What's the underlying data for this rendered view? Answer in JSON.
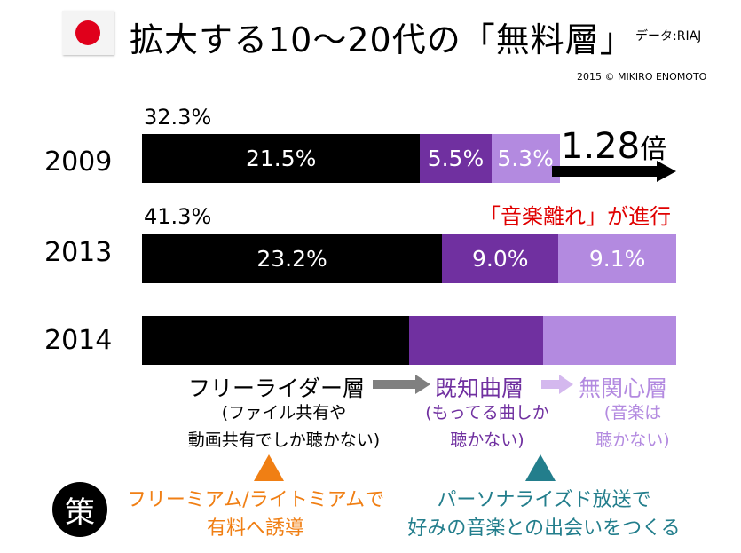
{
  "header": {
    "flag_icon": "japan-flag-icon",
    "title": "拡大する10～20代の「無料層」",
    "source": "データ:RIAJ",
    "copyright": "2015 © MIKIRO  ENOMOTO"
  },
  "chart_data": {
    "type": "stacked-bar-horizontal",
    "categories": [
      "2009",
      "2013",
      "2014"
    ],
    "series": [
      {
        "name": "フリーライダー層",
        "values": [
          21.5,
          23.2,
          null
        ],
        "labels": [
          "21.5%",
          "23.2%",
          ""
        ],
        "color": "#000000"
      },
      {
        "name": "既知曲層",
        "values": [
          5.5,
          9.0,
          null
        ],
        "labels": [
          "5.5%",
          "9.0%",
          ""
        ],
        "color": "#7030a0"
      },
      {
        "name": "無関心層",
        "values": [
          5.3,
          9.1,
          null
        ],
        "labels": [
          "5.3%",
          "9.1%",
          ""
        ],
        "color": "#b38ae0"
      }
    ],
    "totals": [
      "32.3%",
      "41.3%",
      ""
    ],
    "bar_2014_shares": [
      0.5,
      0.25,
      0.25
    ],
    "annotation_ratio": "1.28",
    "annotation_unit": "倍",
    "annotation_trend": "「音楽離れ」が進行"
  },
  "legend": {
    "free_rider": {
      "title": "フリーライダー層",
      "desc1": "(ファイル共有や",
      "desc2": "動画共有でしか聴かない)"
    },
    "known_songs": {
      "title": "既知曲層",
      "desc1": "(もってる曲しか",
      "desc2": "聴かない)"
    },
    "indifferent": {
      "title": "無関心層",
      "desc1": "(音楽は",
      "desc2": "聴かない)"
    }
  },
  "strategy": {
    "badge": "策",
    "left_line1": "フリーミアム/ライトミアムで",
    "left_line2": "有料へ誘導",
    "right_line1": "パーソナライズド放送で",
    "right_line2": "好みの音楽との出会いをつくる"
  },
  "colors": {
    "black": "#000000",
    "purple": "#7030a0",
    "lavender": "#b38ae0",
    "red": "#e00000",
    "orange": "#f07f14",
    "teal": "#237e8c",
    "gray": "#808080"
  }
}
